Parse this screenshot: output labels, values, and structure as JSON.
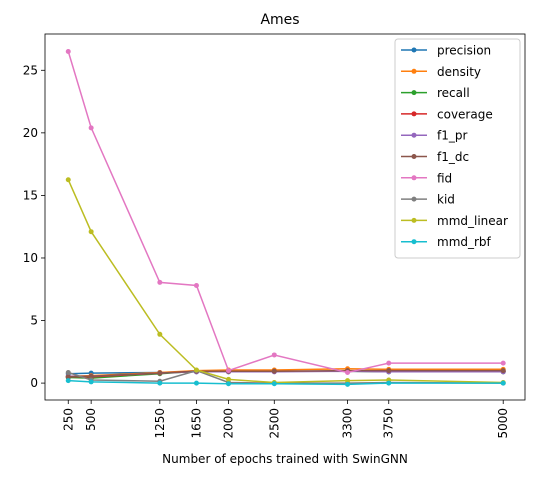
{
  "chart_data": {
    "type": "line",
    "title": "Ames",
    "xlabel": "Number of epochs trained with SwinGNN",
    "ylabel": "",
    "x": [
      250,
      500,
      1250,
      1650,
      2000,
      2500,
      3300,
      3750,
      5000
    ],
    "x_tick_labels": [
      "250",
      "500",
      "1250",
      "1650",
      "2000",
      "2500",
      "3300",
      "3750",
      "5000"
    ],
    "y_ticks": [
      0,
      5,
      10,
      15,
      20,
      25
    ],
    "y_tick_labels": [
      "0",
      "5",
      "10",
      "15",
      "20",
      "25"
    ],
    "xlim": [
      -4,
      5238
    ],
    "ylim": [
      -1.35,
      27.9
    ],
    "grid": false,
    "legend_position": "top-right",
    "series": [
      {
        "name": "precision",
        "color": "#1f77b4",
        "values": [
          0.75,
          0.8,
          0.85,
          0.9,
          0.95,
          0.95,
          0.95,
          0.95,
          0.95
        ]
      },
      {
        "name": "density",
        "color": "#ff7f0e",
        "values": [
          0.55,
          0.6,
          0.85,
          1.0,
          1.05,
          1.05,
          1.15,
          1.1,
          1.1
        ]
      },
      {
        "name": "recall",
        "color": "#2ca02c",
        "values": [
          0.45,
          0.4,
          0.75,
          0.95,
          0.9,
          0.95,
          0.95,
          0.9,
          0.9
        ]
      },
      {
        "name": "coverage",
        "color": "#d62728",
        "values": [
          0.5,
          0.5,
          0.8,
          0.95,
          0.95,
          0.95,
          0.95,
          0.95,
          0.95
        ]
      },
      {
        "name": "f1_pr",
        "color": "#9467bd",
        "values": [
          0.55,
          0.55,
          0.8,
          0.9,
          0.9,
          0.9,
          0.95,
          0.9,
          0.9
        ]
      },
      {
        "name": "f1_dc",
        "color": "#8c564b",
        "values": [
          0.5,
          0.55,
          0.8,
          0.95,
          0.95,
          0.95,
          1.0,
          1.0,
          1.0
        ]
      },
      {
        "name": "fid",
        "color": "#e377c2",
        "values": [
          26.5,
          20.4,
          8.05,
          7.8,
          1.0,
          2.25,
          0.85,
          1.6,
          1.6
        ]
      },
      {
        "name": "kid",
        "color": "#7f7f7f",
        "values": [
          0.85,
          0.25,
          0.15,
          1.0,
          0.05,
          0.0,
          0.0,
          0.05,
          0.0
        ]
      },
      {
        "name": "mmd_linear",
        "color": "#bcbd22",
        "values": [
          16.25,
          12.1,
          3.9,
          1.05,
          0.3,
          0.05,
          0.2,
          0.25,
          0.05
        ]
      },
      {
        "name": "mmd_rbf",
        "color": "#17becf",
        "values": [
          0.2,
          0.1,
          0.0,
          0.0,
          -0.05,
          -0.05,
          -0.1,
          0.0,
          0.0
        ]
      }
    ]
  }
}
